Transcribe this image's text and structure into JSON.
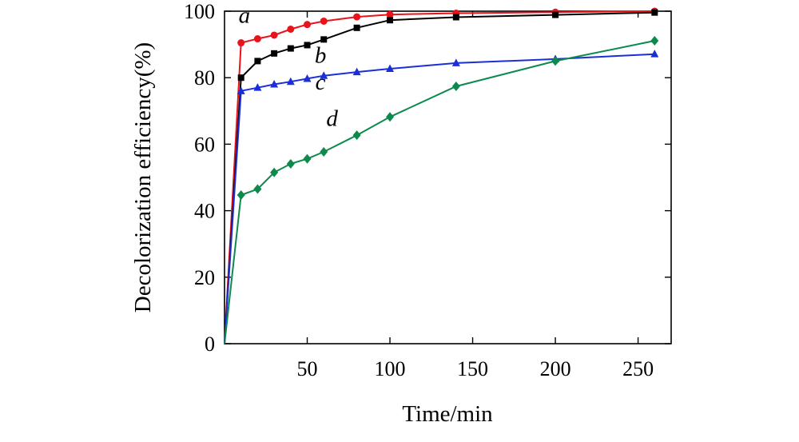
{
  "chart_data": {
    "type": "line",
    "title": "",
    "xlabel": "Time/min",
    "ylabel": "Decolorization efficiency(%)",
    "xlim": [
      0,
      270
    ],
    "ylim": [
      0,
      100
    ],
    "xticks": [
      50,
      100,
      150,
      200,
      250
    ],
    "yticks": [
      0,
      20,
      40,
      60,
      80,
      100
    ],
    "grid": false,
    "legend": "none",
    "series": [
      {
        "name": "a",
        "color": "#e8141c",
        "marker": "circle",
        "x": [
          0,
          10,
          20,
          30,
          40,
          50,
          60,
          80,
          100,
          140,
          200,
          260
        ],
        "y": [
          0,
          90.5,
          91.7,
          92.8,
          94.6,
          96.0,
          97.0,
          98.3,
          99.0,
          99.4,
          99.7,
          100
        ]
      },
      {
        "name": "b",
        "color": "#000000",
        "marker": "square",
        "x": [
          0,
          10,
          20,
          30,
          40,
          50,
          60,
          80,
          100,
          140,
          200,
          260
        ],
        "y": [
          0,
          80.0,
          85.0,
          87.3,
          88.8,
          89.8,
          91.5,
          95.0,
          97.3,
          98.2,
          98.9,
          99.6
        ]
      },
      {
        "name": "c",
        "color": "#1b2fd6",
        "marker": "triangle",
        "x": [
          0,
          10,
          20,
          30,
          40,
          50,
          60,
          80,
          100,
          140,
          200,
          260
        ],
        "y": [
          0,
          76.0,
          77.0,
          78.0,
          78.8,
          79.7,
          80.6,
          81.7,
          82.7,
          84.4,
          85.6,
          87.1
        ]
      },
      {
        "name": "d",
        "color": "#0c8a4c",
        "marker": "diamond",
        "x": [
          0,
          10,
          20,
          30,
          40,
          50,
          60,
          80,
          100,
          140,
          200,
          260
        ],
        "y": [
          0,
          44.7,
          46.5,
          51.5,
          54.1,
          55.6,
          57.7,
          62.7,
          68.2,
          77.4,
          85.0,
          91.1
        ]
      }
    ],
    "annotations": [
      {
        "text": "a",
        "x": 12,
        "y": 96.5
      },
      {
        "text": "b",
        "x": 58,
        "y": 84.5
      },
      {
        "text": "c",
        "x": 58,
        "y": 76.5
      },
      {
        "text": "d",
        "x": 65,
        "y": 65.5
      }
    ]
  }
}
